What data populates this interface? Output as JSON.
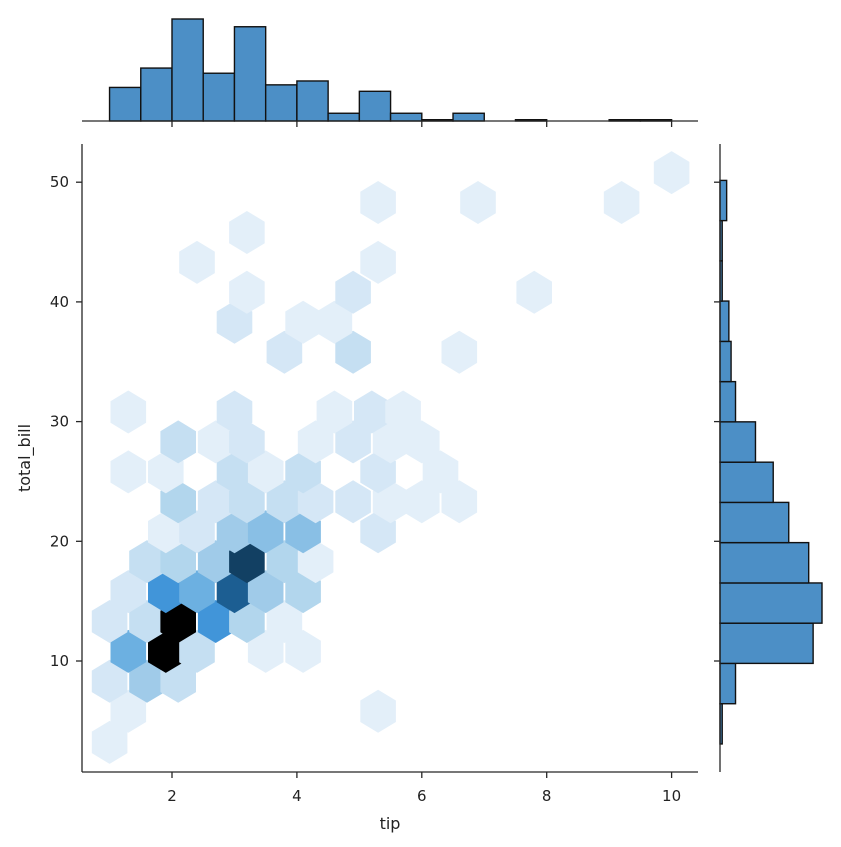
{
  "chart_data": {
    "type": "hexbin-jointplot",
    "title": "",
    "xlabel": "tip",
    "ylabel": "total_bill",
    "xlim": [
      0.56,
      10.44
    ],
    "ylim": [
      1.3,
      53.4
    ],
    "xticks": [
      2,
      4,
      6,
      8,
      10
    ],
    "yticks": [
      10,
      20,
      30,
      40,
      50
    ],
    "grid": false,
    "colormap": "Blues (light #e3f0fa → blue #3a8fd8 → black)",
    "hexbins": [
      {
        "tip": 1.0,
        "total_bill": 3.2,
        "count": 1
      },
      {
        "tip": 1.3,
        "total_bill": 5.8,
        "count": 1
      },
      {
        "tip": 5.3,
        "total_bill": 5.8,
        "count": 1
      },
      {
        "tip": 1.0,
        "total_bill": 8.3,
        "count": 2
      },
      {
        "tip": 1.6,
        "total_bill": 8.3,
        "count": 5
      },
      {
        "tip": 2.1,
        "total_bill": 8.3,
        "count": 3
      },
      {
        "tip": 1.3,
        "total_bill": 10.8,
        "count": 7
      },
      {
        "tip": 1.9,
        "total_bill": 10.8,
        "count": 14
      },
      {
        "tip": 2.4,
        "total_bill": 10.8,
        "count": 3
      },
      {
        "tip": 3.5,
        "total_bill": 10.8,
        "count": 1
      },
      {
        "tip": 4.1,
        "total_bill": 10.8,
        "count": 1
      },
      {
        "tip": 1.0,
        "total_bill": 13.3,
        "count": 2
      },
      {
        "tip": 1.6,
        "total_bill": 13.3,
        "count": 3
      },
      {
        "tip": 2.1,
        "total_bill": 13.3,
        "count": 14
      },
      {
        "tip": 2.7,
        "total_bill": 13.3,
        "count": 8
      },
      {
        "tip": 3.2,
        "total_bill": 13.3,
        "count": 4
      },
      {
        "tip": 3.8,
        "total_bill": 13.3,
        "count": 1
      },
      {
        "tip": 1.3,
        "total_bill": 15.8,
        "count": 2
      },
      {
        "tip": 1.9,
        "total_bill": 15.8,
        "count": 8
      },
      {
        "tip": 2.4,
        "total_bill": 15.8,
        "count": 7
      },
      {
        "tip": 3.0,
        "total_bill": 15.8,
        "count": 11
      },
      {
        "tip": 3.5,
        "total_bill": 15.8,
        "count": 5
      },
      {
        "tip": 4.1,
        "total_bill": 15.8,
        "count": 4
      },
      {
        "tip": 1.6,
        "total_bill": 18.3,
        "count": 3
      },
      {
        "tip": 2.1,
        "total_bill": 18.3,
        "count": 4
      },
      {
        "tip": 2.7,
        "total_bill": 18.3,
        "count": 5
      },
      {
        "tip": 3.2,
        "total_bill": 18.3,
        "count": 12
      },
      {
        "tip": 3.8,
        "total_bill": 18.3,
        "count": 4
      },
      {
        "tip": 4.3,
        "total_bill": 18.3,
        "count": 1
      },
      {
        "tip": 1.9,
        "total_bill": 20.8,
        "count": 1
      },
      {
        "tip": 2.4,
        "total_bill": 20.8,
        "count": 2
      },
      {
        "tip": 3.0,
        "total_bill": 20.8,
        "count": 5
      },
      {
        "tip": 3.5,
        "total_bill": 20.8,
        "count": 6
      },
      {
        "tip": 4.1,
        "total_bill": 20.8,
        "count": 6
      },
      {
        "tip": 5.3,
        "total_bill": 20.8,
        "count": 2
      },
      {
        "tip": 2.1,
        "total_bill": 23.3,
        "count": 4
      },
      {
        "tip": 2.7,
        "total_bill": 23.3,
        "count": 2
      },
      {
        "tip": 3.2,
        "total_bill": 23.3,
        "count": 3
      },
      {
        "tip": 3.8,
        "total_bill": 23.3,
        "count": 3
      },
      {
        "tip": 4.3,
        "total_bill": 23.3,
        "count": 2
      },
      {
        "tip": 4.9,
        "total_bill": 23.3,
        "count": 2
      },
      {
        "tip": 5.5,
        "total_bill": 23.3,
        "count": 1
      },
      {
        "tip": 6.0,
        "total_bill": 23.3,
        "count": 1
      },
      {
        "tip": 6.6,
        "total_bill": 23.3,
        "count": 1
      },
      {
        "tip": 1.3,
        "total_bill": 25.8,
        "count": 1
      },
      {
        "tip": 1.9,
        "total_bill": 25.8,
        "count": 1
      },
      {
        "tip": 3.0,
        "total_bill": 25.8,
        "count": 3
      },
      {
        "tip": 3.5,
        "total_bill": 25.8,
        "count": 1
      },
      {
        "tip": 4.1,
        "total_bill": 25.8,
        "count": 3
      },
      {
        "tip": 5.3,
        "total_bill": 25.8,
        "count": 2
      },
      {
        "tip": 6.3,
        "total_bill": 25.8,
        "count": 1
      },
      {
        "tip": 2.1,
        "total_bill": 28.3,
        "count": 3
      },
      {
        "tip": 2.7,
        "total_bill": 28.3,
        "count": 1
      },
      {
        "tip": 3.2,
        "total_bill": 28.3,
        "count": 2
      },
      {
        "tip": 4.3,
        "total_bill": 28.3,
        "count": 1
      },
      {
        "tip": 4.9,
        "total_bill": 28.3,
        "count": 2
      },
      {
        "tip": 5.5,
        "total_bill": 28.3,
        "count": 1
      },
      {
        "tip": 6.0,
        "total_bill": 28.3,
        "count": 1
      },
      {
        "tip": 1.3,
        "total_bill": 30.8,
        "count": 1
      },
      {
        "tip": 3.0,
        "total_bill": 30.8,
        "count": 2
      },
      {
        "tip": 4.6,
        "total_bill": 30.8,
        "count": 1
      },
      {
        "tip": 5.2,
        "total_bill": 30.8,
        "count": 2
      },
      {
        "tip": 5.7,
        "total_bill": 30.8,
        "count": 1
      },
      {
        "tip": 3.8,
        "total_bill": 35.8,
        "count": 2
      },
      {
        "tip": 4.9,
        "total_bill": 35.8,
        "count": 3
      },
      {
        "tip": 6.6,
        "total_bill": 35.8,
        "count": 1
      },
      {
        "tip": 3.0,
        "total_bill": 38.3,
        "count": 2
      },
      {
        "tip": 4.1,
        "total_bill": 38.3,
        "count": 1
      },
      {
        "tip": 4.6,
        "total_bill": 38.3,
        "count": 1
      },
      {
        "tip": 3.2,
        "total_bill": 40.8,
        "count": 1
      },
      {
        "tip": 4.9,
        "total_bill": 40.8,
        "count": 2
      },
      {
        "tip": 7.8,
        "total_bill": 40.8,
        "count": 1
      },
      {
        "tip": 2.4,
        "total_bill": 43.3,
        "count": 1
      },
      {
        "tip": 5.3,
        "total_bill": 43.3,
        "count": 1
      },
      {
        "tip": 3.2,
        "total_bill": 45.8,
        "count": 1
      },
      {
        "tip": 5.3,
        "total_bill": 48.3,
        "count": 1
      },
      {
        "tip": 6.9,
        "total_bill": 48.3,
        "count": 1
      },
      {
        "tip": 9.2,
        "total_bill": 48.3,
        "count": 1
      },
      {
        "tip": 10.0,
        "total_bill": 50.8,
        "count": 1
      }
    ],
    "marginal_x": {
      "type": "histogram",
      "variable": "tip",
      "bin_edges": [
        1.0,
        1.5,
        2.0,
        2.5,
        3.0,
        3.5,
        4.0,
        4.5,
        5.0,
        5.5,
        6.0,
        6.5,
        7.0,
        7.5,
        8.0,
        8.5,
        9.0,
        9.5,
        10.0
      ],
      "counts": [
        26,
        41,
        79,
        37,
        73,
        28,
        31,
        6,
        23,
        6,
        1,
        6,
        0,
        1,
        0,
        0,
        1,
        1
      ]
    },
    "marginal_y": {
      "type": "histogram",
      "variable": "total_bill",
      "bin_edges": [
        3.07,
        6.43,
        9.8,
        13.16,
        16.52,
        19.89,
        23.25,
        26.61,
        29.98,
        33.34,
        36.7,
        40.07,
        43.43,
        46.79,
        50.15
      ],
      "counts": [
        1,
        7,
        42,
        46,
        40,
        31,
        24,
        16,
        7,
        5,
        4,
        1,
        1,
        3
      ]
    },
    "bar_color": "#4c8fc6",
    "bar_edge_color": "#111111"
  }
}
